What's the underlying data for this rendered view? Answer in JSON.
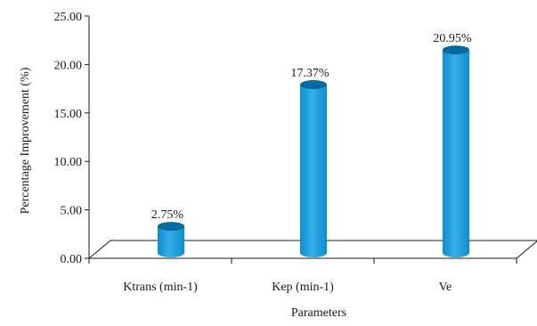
{
  "chart_data": {
    "type": "bar",
    "style": "3d-cylinder",
    "categories": [
      "Ktrans (min-1)",
      "Kep (min-1)",
      "Ve"
    ],
    "values": [
      2.75,
      17.37,
      20.95
    ],
    "data_labels": [
      "2.75%",
      "17.37%",
      "20.95%"
    ],
    "xlabel": "Parameters",
    "ylabel": "Percentage Improvement (%)",
    "ylim": [
      0,
      25
    ],
    "yticks": [
      "0.00",
      "5.00",
      "10.00",
      "15.00",
      "20.00",
      "25.00"
    ],
    "grid": false,
    "legend": "none",
    "bar_color": "#0a8fd1",
    "bar_dark_color": "#066a9e",
    "bar_light_color": "#36aee6"
  }
}
